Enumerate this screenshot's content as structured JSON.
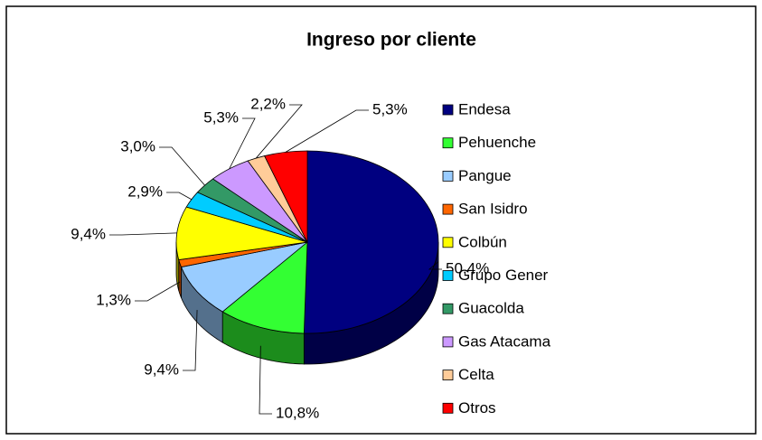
{
  "chart_data": {
    "type": "pie3d",
    "title": "Ingreso por cliente",
    "categories": [
      "Endesa",
      "Pehuenche",
      "Pangue",
      "San Isidro",
      "Colbún",
      "Grupo Gener",
      "Guacolda",
      "Gas Atacama",
      "Celta",
      "Otros"
    ],
    "values": [
      50.4,
      10.8,
      9.4,
      1.3,
      9.4,
      2.9,
      3.0,
      5.3,
      2.2,
      5.3
    ],
    "value_labels": [
      "50,4%",
      "10,8%",
      "9,4%",
      "1,3%",
      "9,4%",
      "2,9%",
      "3,0%",
      "5,3%",
      "2,2%",
      "5,3%"
    ],
    "colors": [
      "#000080",
      "#33ff33",
      "#99ccff",
      "#ff6600",
      "#ffff00",
      "#00ccff",
      "#339966",
      "#cc99ff",
      "#ffcc99",
      "#ff0000"
    ],
    "legend": "right"
  }
}
